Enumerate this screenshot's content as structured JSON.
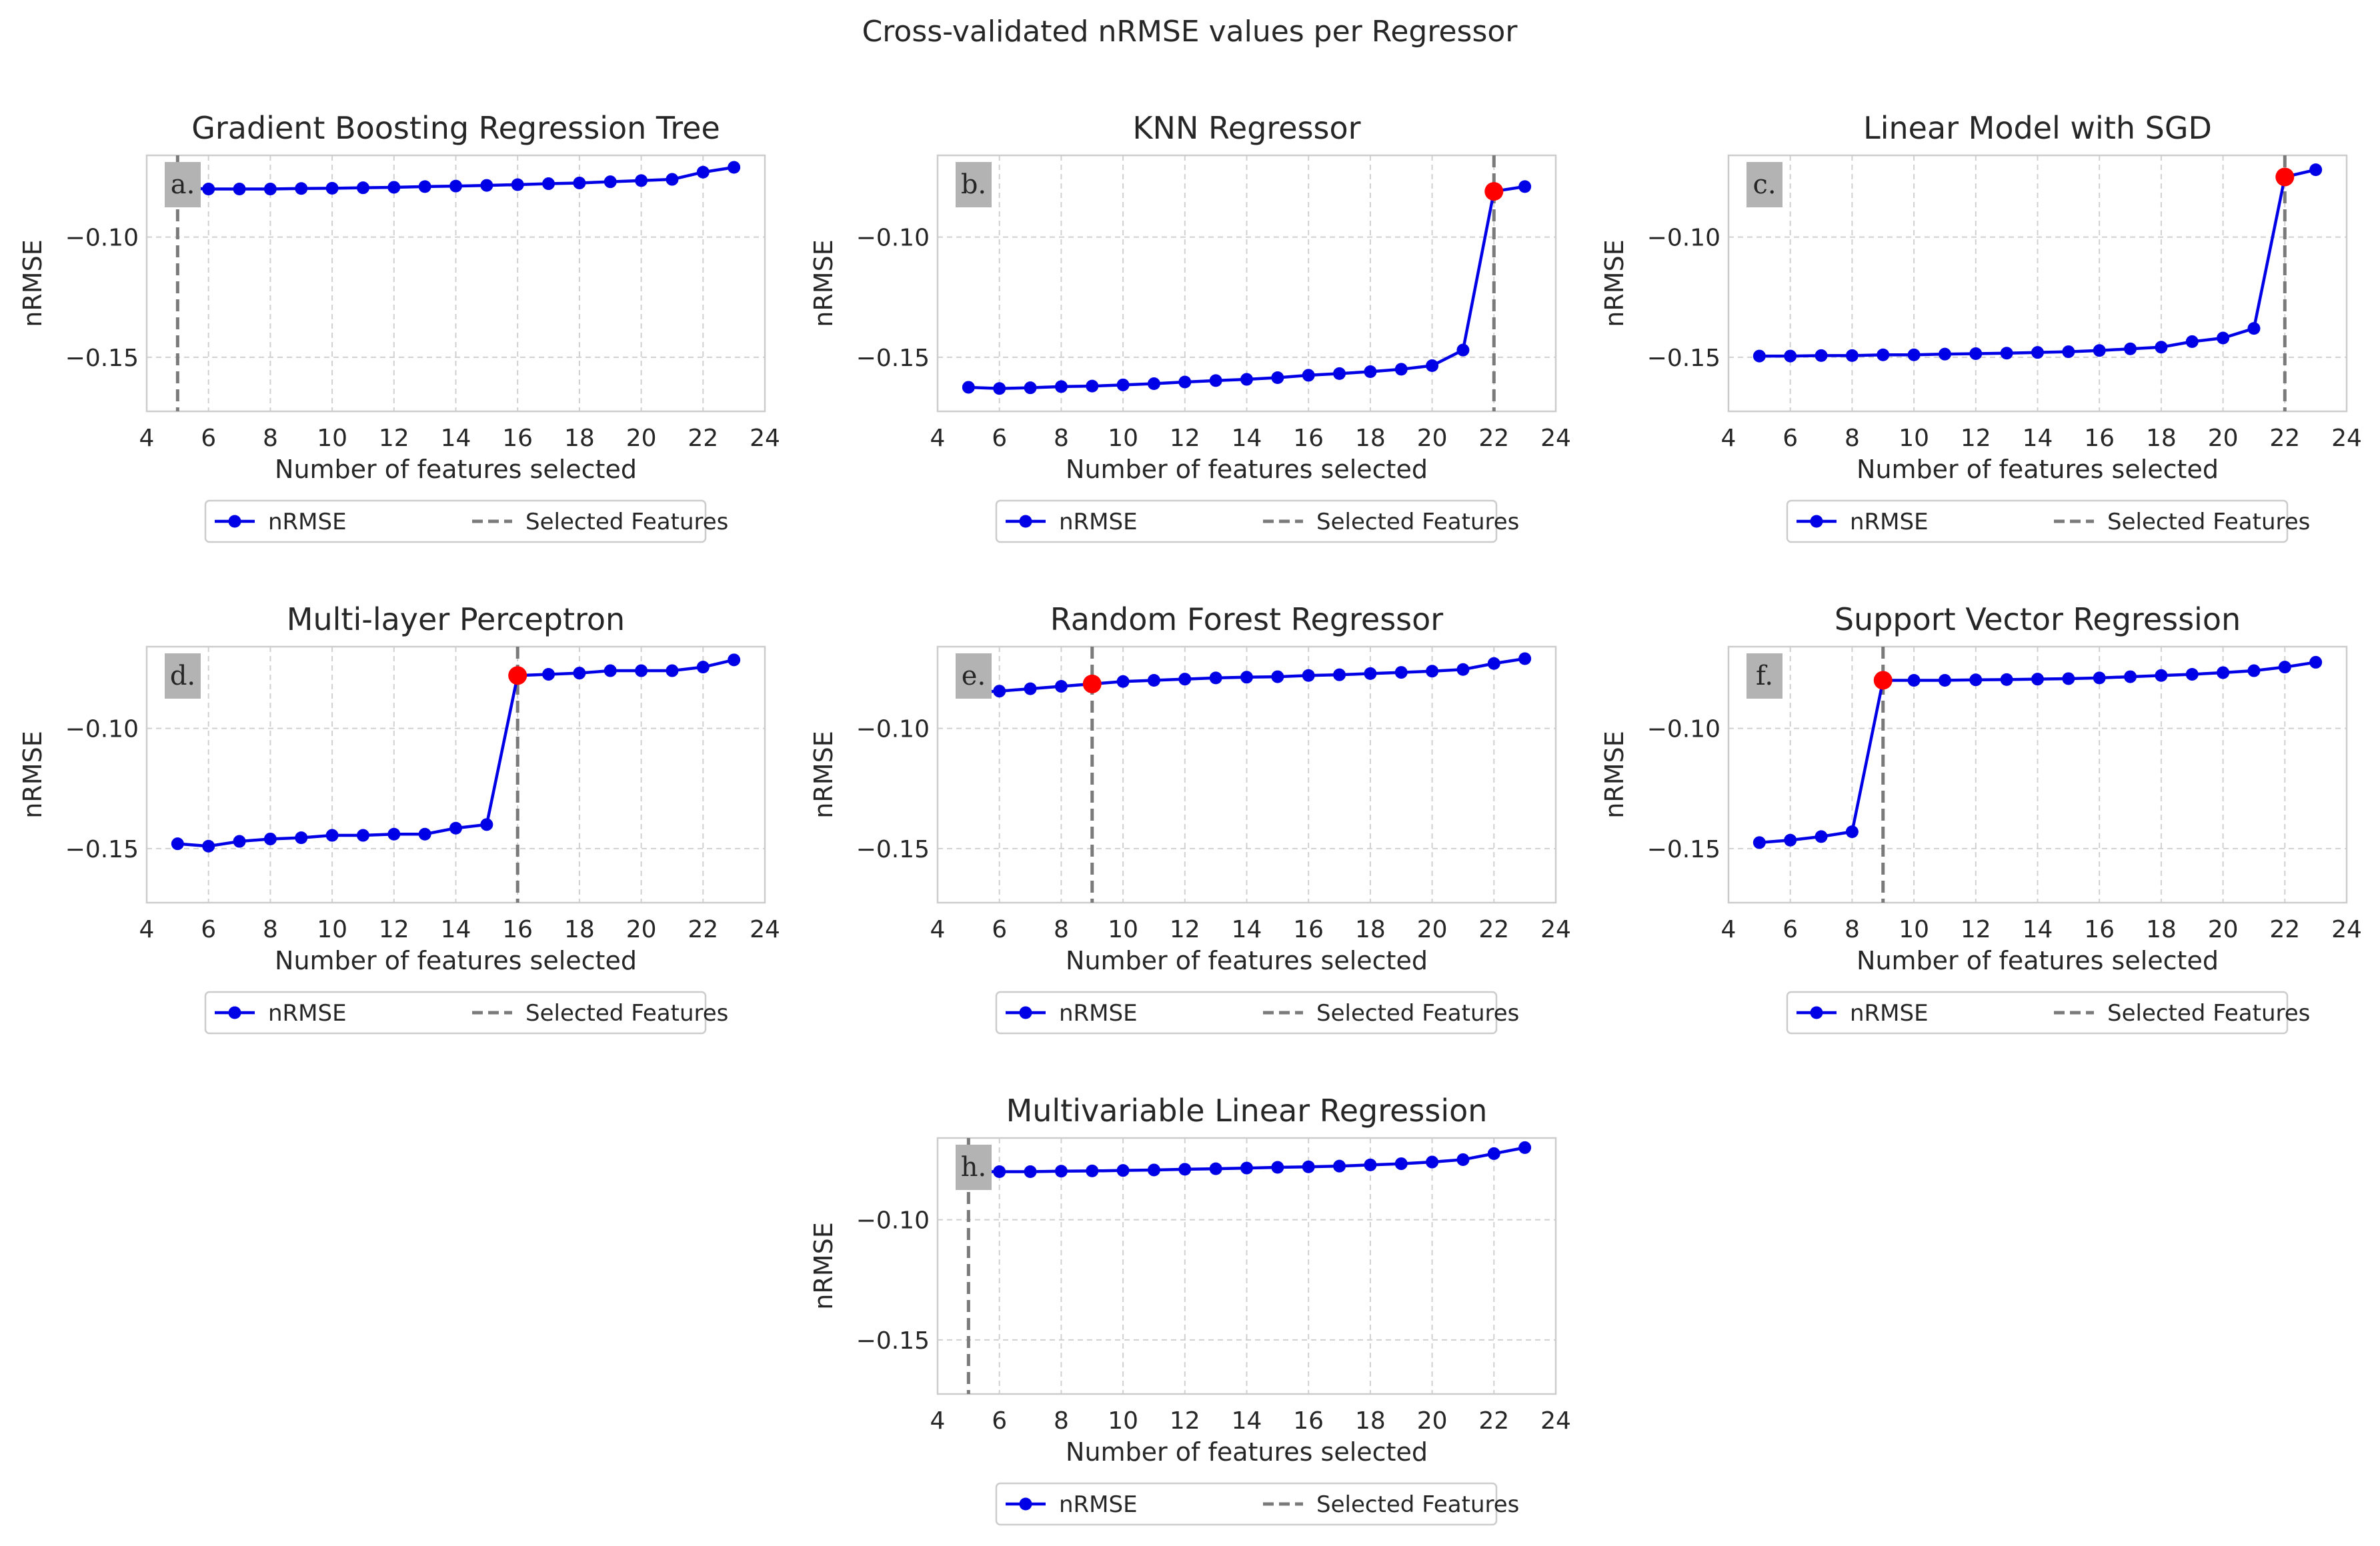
{
  "chart_data": {
    "title": "Cross-validated nRMSE values per Regressor",
    "type": "line",
    "legend": {
      "series_label": "nRMSE",
      "selected_label": "Selected Features",
      "placement": "below"
    },
    "colors": {
      "line": "#0000e6",
      "selected_point": "#ff0000",
      "vline": "#7a7a7a",
      "grid": "#d0d0d0",
      "label_box": "#b3b3b3"
    },
    "panels": [
      {
        "label": "a.",
        "title": "Gradient Boosting Regression Tree",
        "xlabel": "Number of features selected",
        "ylabel": "nRMSE",
        "xlim": [
          4,
          24
        ],
        "ylim": [
          -0.1725,
          -0.066
        ],
        "xticks": [
          "4",
          "6",
          "8",
          "10",
          "12",
          "14",
          "16",
          "18",
          "20",
          "22",
          "24"
        ],
        "yticks": [
          "−0.10",
          "−0.15"
        ],
        "x": [
          5,
          6,
          7,
          8,
          9,
          10,
          11,
          12,
          13,
          14,
          15,
          16,
          17,
          18,
          19,
          20,
          21,
          22,
          23
        ],
        "y": [
          -0.0795,
          -0.08,
          -0.08,
          -0.08,
          -0.0798,
          -0.0797,
          -0.0795,
          -0.0793,
          -0.079,
          -0.0788,
          -0.0785,
          -0.0782,
          -0.0778,
          -0.0775,
          -0.077,
          -0.0765,
          -0.076,
          -0.073,
          -0.071
        ],
        "selected": 5
      },
      {
        "label": "b.",
        "title": "KNN Regressor",
        "xlabel": "Number of features selected",
        "ylabel": "nRMSE",
        "xlim": [
          4,
          24
        ],
        "ylim": [
          -0.1725,
          -0.066
        ],
        "xticks": [
          "4",
          "6",
          "8",
          "10",
          "12",
          "14",
          "16",
          "18",
          "20",
          "22",
          "24"
        ],
        "yticks": [
          "−0.10",
          "−0.15"
        ],
        "x": [
          5,
          6,
          7,
          8,
          9,
          10,
          11,
          12,
          13,
          14,
          15,
          16,
          17,
          18,
          19,
          20,
          21,
          22,
          23
        ],
        "y": [
          -0.1625,
          -0.163,
          -0.1627,
          -0.1622,
          -0.162,
          -0.1615,
          -0.161,
          -0.1603,
          -0.1597,
          -0.1592,
          -0.1585,
          -0.1575,
          -0.1568,
          -0.156,
          -0.155,
          -0.1535,
          -0.147,
          -0.081,
          -0.079
        ],
        "selected": 22
      },
      {
        "label": "c.",
        "title": "Linear Model with SGD",
        "xlabel": "Number of features selected",
        "ylabel": "nRMSE",
        "xlim": [
          4,
          24
        ],
        "ylim": [
          -0.1725,
          -0.066
        ],
        "xticks": [
          "4",
          "6",
          "8",
          "10",
          "12",
          "14",
          "16",
          "18",
          "20",
          "22",
          "24"
        ],
        "yticks": [
          "−0.10",
          "−0.15"
        ],
        "x": [
          5,
          6,
          7,
          8,
          9,
          10,
          11,
          12,
          13,
          14,
          15,
          16,
          17,
          18,
          19,
          20,
          21,
          22,
          23
        ],
        "y": [
          -0.1495,
          -0.1495,
          -0.1493,
          -0.1493,
          -0.149,
          -0.149,
          -0.1487,
          -0.1485,
          -0.1483,
          -0.148,
          -0.1477,
          -0.1472,
          -0.1465,
          -0.1458,
          -0.1435,
          -0.142,
          -0.138,
          -0.075,
          -0.072
        ],
        "selected": 22
      },
      {
        "label": "d.",
        "title": "Multi-layer Perceptron",
        "xlabel": "Number of features selected",
        "ylabel": "nRMSE",
        "xlim": [
          4,
          24
        ],
        "ylim": [
          -0.1725,
          -0.066
        ],
        "xticks": [
          "4",
          "6",
          "8",
          "10",
          "12",
          "14",
          "16",
          "18",
          "20",
          "22",
          "24"
        ],
        "yticks": [
          "−0.10",
          "−0.15"
        ],
        "x": [
          5,
          6,
          7,
          8,
          9,
          10,
          11,
          12,
          13,
          14,
          15,
          16,
          17,
          18,
          19,
          20,
          21,
          22,
          23
        ],
        "y": [
          -0.148,
          -0.149,
          -0.147,
          -0.146,
          -0.1455,
          -0.1445,
          -0.1445,
          -0.144,
          -0.144,
          -0.1415,
          -0.14,
          -0.078,
          -0.0775,
          -0.077,
          -0.076,
          -0.076,
          -0.076,
          -0.0745,
          -0.0715
        ],
        "selected": 16
      },
      {
        "label": "e.",
        "title": "Random Forest Regressor",
        "xlabel": "Number of features selected",
        "ylabel": "nRMSE",
        "xlim": [
          4,
          24
        ],
        "ylim": [
          -0.1725,
          -0.066
        ],
        "xticks": [
          "4",
          "6",
          "8",
          "10",
          "12",
          "14",
          "16",
          "18",
          "20",
          "22",
          "24"
        ],
        "yticks": [
          "−0.10",
          "−0.15"
        ],
        "x": [
          5,
          6,
          7,
          8,
          9,
          10,
          11,
          12,
          13,
          14,
          15,
          16,
          17,
          18,
          19,
          20,
          21,
          22,
          23
        ],
        "y": [
          -0.085,
          -0.0845,
          -0.0835,
          -0.0825,
          -0.0815,
          -0.0805,
          -0.08,
          -0.0795,
          -0.079,
          -0.0787,
          -0.0785,
          -0.078,
          -0.0777,
          -0.0772,
          -0.0767,
          -0.0762,
          -0.0755,
          -0.073,
          -0.071
        ],
        "selected": 9
      },
      {
        "label": "f.",
        "title": "Support Vector Regression",
        "xlabel": "Number of features selected",
        "ylabel": "nRMSE",
        "xlim": [
          4,
          24
        ],
        "ylim": [
          -0.1725,
          -0.066
        ],
        "xticks": [
          "4",
          "6",
          "8",
          "10",
          "12",
          "14",
          "16",
          "18",
          "20",
          "22",
          "24"
        ],
        "yticks": [
          "−0.10",
          "−0.15"
        ],
        "x": [
          5,
          6,
          7,
          8,
          9,
          10,
          11,
          12,
          13,
          14,
          15,
          16,
          17,
          18,
          19,
          20,
          21,
          22,
          23
        ],
        "y": [
          -0.1475,
          -0.1465,
          -0.145,
          -0.143,
          -0.08,
          -0.08,
          -0.08,
          -0.0798,
          -0.0797,
          -0.0795,
          -0.0793,
          -0.079,
          -0.0785,
          -0.078,
          -0.0775,
          -0.0768,
          -0.076,
          -0.0745,
          -0.0725
        ],
        "selected": 9
      },
      {
        "label": "h.",
        "title": "Multivariable Linear Regression",
        "xlabel": "Number of features selected",
        "ylabel": "nRMSE",
        "xlim": [
          4,
          24
        ],
        "ylim": [
          -0.1725,
          -0.066
        ],
        "xticks": [
          "4",
          "6",
          "8",
          "10",
          "12",
          "14",
          "16",
          "18",
          "20",
          "22",
          "24"
        ],
        "yticks": [
          "−0.10",
          "−0.15"
        ],
        "x": [
          5,
          6,
          7,
          8,
          9,
          10,
          11,
          12,
          13,
          14,
          15,
          16,
          17,
          18,
          19,
          20,
          21,
          22,
          23
        ],
        "y": [
          -0.08,
          -0.08,
          -0.08,
          -0.0798,
          -0.0797,
          -0.0795,
          -0.0793,
          -0.079,
          -0.0788,
          -0.0785,
          -0.0782,
          -0.078,
          -0.0777,
          -0.0772,
          -0.0767,
          -0.076,
          -0.075,
          -0.0725,
          -0.07
        ],
        "selected": 5
      }
    ]
  }
}
